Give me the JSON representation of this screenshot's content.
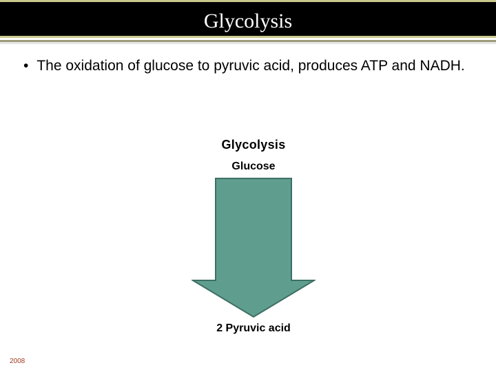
{
  "title": "Glycolysis",
  "title_bar": {
    "background": "#000000",
    "text_color": "#ffffff",
    "accent_top": "#c9c98e",
    "accent_bottom": "#9c9c7a"
  },
  "bullet": {
    "marker": "•",
    "text": "The oxidation of glucose to pyruvic acid, produces ATP and NADH."
  },
  "diagram": {
    "type": "flowchart",
    "heading": "Glycolysis",
    "input": "Glucose",
    "output": "2 Pyruvic acid",
    "arrow": {
      "fill": "#5f9e8f",
      "stroke": "#3d6f63",
      "stroke_width": 2,
      "shaft_width": 110,
      "shaft_height": 150,
      "head_width": 180,
      "head_height": 55
    }
  },
  "footer": "2008",
  "colors": {
    "background": "#ffffff",
    "text": "#000000",
    "footer": "#a03a1e"
  }
}
